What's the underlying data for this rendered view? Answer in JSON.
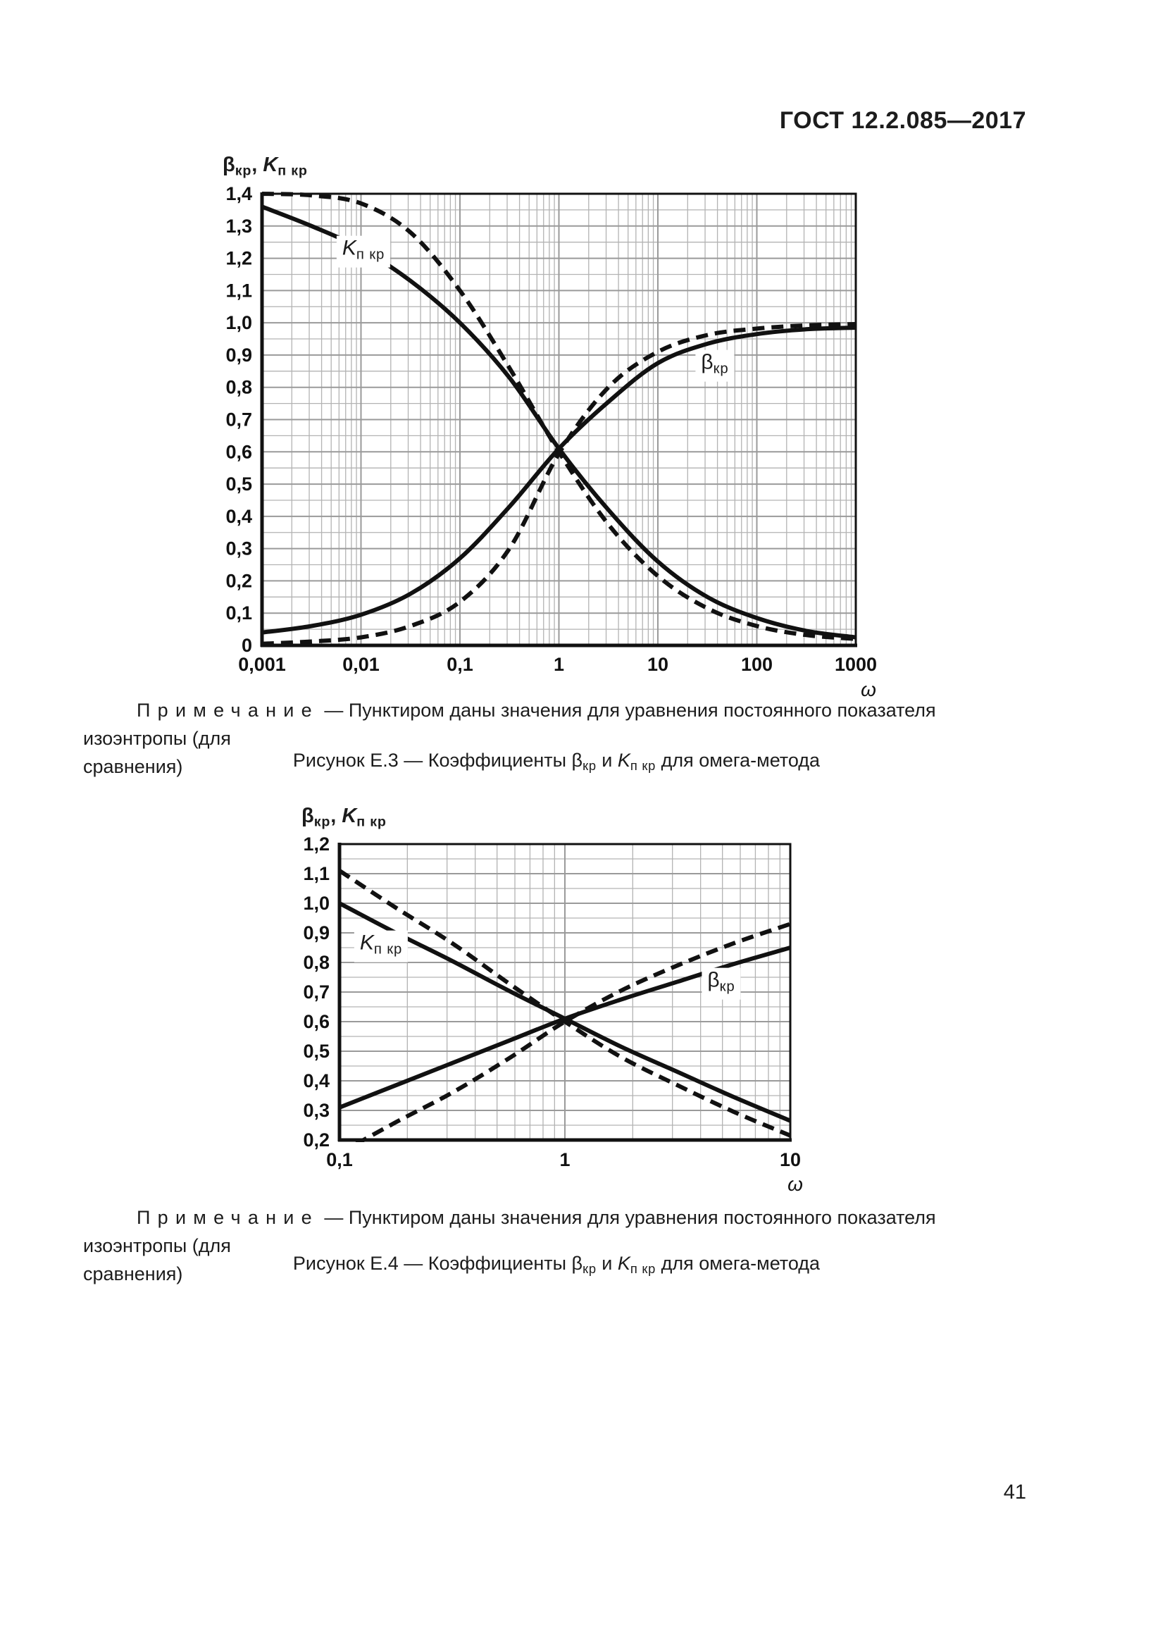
{
  "page": {
    "header": "ГОСТ 12.2.085—2017",
    "page_number": "41"
  },
  "note": {
    "label": "Примечание",
    "line1": " — Пунктиром даны значения для уравнения постоянного показателя изоэнтропы (для",
    "line2": "сравнения)"
  },
  "captions": {
    "e3": [
      {
        "t": "Рисунок Е.3 — Коэффициенты "
      },
      {
        "t": "β"
      },
      {
        "t": "кр",
        "sub": true
      },
      {
        "t": " и "
      },
      {
        "t": "K",
        "i": true
      },
      {
        "t": "п кр",
        "sub": true
      },
      {
        "t": " для омега-метода"
      }
    ],
    "e4": [
      {
        "t": "Рисунок Е.4 — Коэффициенты "
      },
      {
        "t": "β"
      },
      {
        "t": "кр",
        "sub": true
      },
      {
        "t": " и "
      },
      {
        "t": "K",
        "i": true
      },
      {
        "t": "п кр",
        "sub": true
      },
      {
        "t": " для омега-метода"
      }
    ]
  },
  "axis_title": [
    {
      "t": "β"
    },
    {
      "t": "кр",
      "sub": true
    },
    {
      "t": ", "
    },
    {
      "t": "K",
      "i": true
    },
    {
      "t": "п кр",
      "sub": true
    }
  ],
  "curve_labels": {
    "k": [
      {
        "t": "K",
        "i": true
      },
      {
        "t": "п кр",
        "sub": true
      }
    ],
    "beta": [
      {
        "t": "β"
      },
      {
        "t": "кр",
        "sub": true
      }
    ]
  },
  "chart_data": [
    {
      "id": "figure-e3",
      "type": "line",
      "title": "Коэффициенты бета_кр и К_п_кр для омега-метода (Рисунок Е.3)",
      "x_scale": "log",
      "xlabel": "ω",
      "ylabel": "β_кр, K_п_кр",
      "xlim_log10": [
        -3,
        3
      ],
      "ylim": [
        0,
        1.4
      ],
      "grid": {
        "y_major_step": 0.1,
        "y_minor_step": 0.05,
        "x_log_minors": true
      },
      "x_ticks": [
        {
          "log10": -3,
          "label": "0,001"
        },
        {
          "log10": -2,
          "label": "0,01"
        },
        {
          "log10": -1,
          "label": "0,1"
        },
        {
          "log10": 0,
          "label": "1"
        },
        {
          "log10": 1,
          "label": "10"
        },
        {
          "log10": 2,
          "label": "100"
        },
        {
          "log10": 3,
          "label": "1000"
        }
      ],
      "y_ticks": [
        {
          "v": 1.4,
          "label": "1,4"
        },
        {
          "v": 1.3,
          "label": "1,3"
        },
        {
          "v": 1.2,
          "label": "1,2"
        },
        {
          "v": 1.1,
          "label": "1,1"
        },
        {
          "v": 1.0,
          "label": "1,0"
        },
        {
          "v": 0.9,
          "label": "0,9"
        },
        {
          "v": 0.8,
          "label": "0,8"
        },
        {
          "v": 0.7,
          "label": "0,7"
        },
        {
          "v": 0.6,
          "label": "0,6"
        },
        {
          "v": 0.5,
          "label": "0,5"
        },
        {
          "v": 0.4,
          "label": "0,4"
        },
        {
          "v": 0.3,
          "label": "0,3"
        },
        {
          "v": 0.2,
          "label": "0,2"
        },
        {
          "v": 0.1,
          "label": "0,1"
        },
        {
          "v": 0.0,
          "label": "0"
        }
      ],
      "series": [
        {
          "id": "k-omega",
          "name": "K_п_кр (омега-метод)",
          "style": "solid",
          "logx": [
            -3,
            -2.5,
            -2,
            -1.5,
            -1,
            -0.5,
            0,
            0.5,
            1,
            1.5,
            2,
            2.5,
            3
          ],
          "y": [
            1.36,
            1.3,
            1.23,
            1.13,
            1.0,
            0.83,
            0.61,
            0.42,
            0.26,
            0.15,
            0.085,
            0.045,
            0.025
          ]
        },
        {
          "id": "k-isentrope",
          "name": "K_п_кр (постоянный показатель изоэнтропы)",
          "style": "dashed",
          "logx": [
            -3,
            -2.5,
            -2,
            -1.5,
            -1,
            -0.5,
            0,
            0.5,
            1,
            1.5,
            2,
            2.5,
            3
          ],
          "y": [
            1.4,
            1.395,
            1.37,
            1.28,
            1.1,
            0.86,
            0.6,
            0.375,
            0.215,
            0.115,
            0.06,
            0.032,
            0.02
          ]
        },
        {
          "id": "beta-omega",
          "name": "β_кр (омега-метод)",
          "style": "solid",
          "logx": [
            -3,
            -2.5,
            -2,
            -1.5,
            -1,
            -0.5,
            0,
            0.5,
            1,
            1.5,
            2,
            2.5,
            3
          ],
          "y": [
            0.04,
            0.06,
            0.095,
            0.16,
            0.27,
            0.43,
            0.61,
            0.755,
            0.875,
            0.935,
            0.965,
            0.98,
            0.985
          ]
        },
        {
          "id": "beta-isentrope",
          "name": "β_кр (постоянный показатель изоэнтропы)",
          "style": "dashed",
          "logx": [
            -3,
            -2.5,
            -2,
            -1.5,
            -1,
            -0.5,
            0,
            0.5,
            1,
            1.5,
            2,
            2.5,
            3
          ],
          "y": [
            0.005,
            0.012,
            0.025,
            0.06,
            0.135,
            0.3,
            0.595,
            0.8,
            0.91,
            0.962,
            0.982,
            0.992,
            0.996
          ]
        }
      ]
    },
    {
      "id": "figure-e4",
      "type": "line",
      "title": "Коэффициенты бета_кр и К_п_кр для омега-метода (Рисунок Е.4)",
      "x_scale": "log",
      "xlabel": "ω",
      "ylabel": "β_кр, K_п_кр",
      "xlim_log10": [
        -1,
        1
      ],
      "ylim": [
        0.2,
        1.2
      ],
      "grid": {
        "y_major_step": 0.1,
        "y_minor_step": 0.05,
        "x_log_minors": true
      },
      "x_ticks": [
        {
          "log10": -1,
          "label": "0,1"
        },
        {
          "log10": 0,
          "label": "1"
        },
        {
          "log10": 1,
          "label": "10"
        }
      ],
      "y_ticks": [
        {
          "v": 1.2,
          "label": "1,2"
        },
        {
          "v": 1.1,
          "label": "1,1"
        },
        {
          "v": 1.0,
          "label": "1,0"
        },
        {
          "v": 0.9,
          "label": "0,9"
        },
        {
          "v": 0.8,
          "label": "0,8"
        },
        {
          "v": 0.7,
          "label": "0,7"
        },
        {
          "v": 0.6,
          "label": "0,6"
        },
        {
          "v": 0.5,
          "label": "0,5"
        },
        {
          "v": 0.4,
          "label": "0,4"
        },
        {
          "v": 0.3,
          "label": "0,3"
        },
        {
          "v": 0.2,
          "label": "0,2"
        }
      ],
      "series": [
        {
          "id": "k-omega",
          "name": "K_п_кр (омега-метод)",
          "style": "solid",
          "logx": [
            -1,
            -0.75,
            -0.5,
            -0.25,
            0,
            0.25,
            0.5,
            0.75,
            1
          ],
          "y": [
            1.0,
            0.9,
            0.805,
            0.705,
            0.61,
            0.515,
            0.43,
            0.345,
            0.265
          ]
        },
        {
          "id": "k-isentrope",
          "name": "K_п_кр (постоянный показатель изоэнтропы)",
          "style": "dashed",
          "logx": [
            -1,
            -0.75,
            -0.5,
            -0.25,
            0,
            0.25,
            0.5,
            0.75,
            1
          ],
          "y": [
            1.11,
            0.985,
            0.865,
            0.73,
            0.6,
            0.48,
            0.385,
            0.295,
            0.215
          ]
        },
        {
          "id": "beta-omega",
          "name": "β_кр (омега-метод)",
          "style": "solid",
          "logx": [
            -1,
            -0.75,
            -0.5,
            -0.25,
            0,
            0.25,
            0.5,
            0.75,
            1
          ],
          "y": [
            0.31,
            0.385,
            0.46,
            0.535,
            0.61,
            0.675,
            0.735,
            0.795,
            0.85
          ]
        },
        {
          "id": "beta-isentrope",
          "name": "β_кр (постоянный показатель изоэнтропы)",
          "style": "dashed",
          "logx": [
            -1,
            -0.75,
            -0.5,
            -0.25,
            0,
            0.25,
            0.5,
            0.75,
            1
          ],
          "y": [
            0.155,
            0.26,
            0.36,
            0.475,
            0.6,
            0.705,
            0.79,
            0.865,
            0.93
          ]
        }
      ]
    }
  ]
}
